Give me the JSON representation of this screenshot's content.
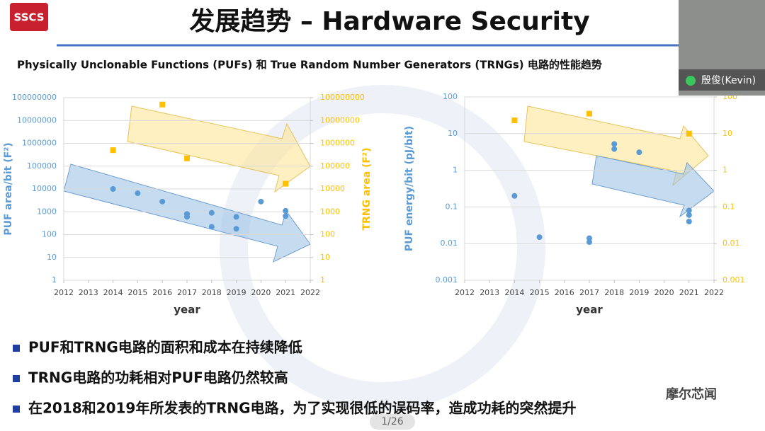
{
  "logo": "SSCS",
  "title": "发展趋势 – Hardware Security",
  "subtitle": "Physically Unclonable Functions (PUFs) 和 True Random Number Generators (TRNGs) 电路的性能趋势",
  "participant": "殷俊(Kevin)",
  "chart_data": [
    {
      "type": "scatter",
      "log_scale": true,
      "grid": true,
      "xlabel": "year",
      "ylabel": "PUF area/bit (F²)",
      "y2label": "TRNG area (F²)",
      "xlim": [
        2012,
        2022
      ],
      "xticks": [
        2012,
        2013,
        2014,
        2015,
        2016,
        2017,
        2018,
        2019,
        2020,
        2021,
        2022
      ],
      "ylim": [
        1,
        100000000
      ],
      "yticks": [
        1,
        10,
        100,
        1000,
        10000,
        100000,
        1000000,
        10000000,
        100000000
      ],
      "y2lim": [
        1,
        100000000
      ],
      "y2ticks": [
        1,
        10,
        100,
        1000,
        10000,
        100000,
        1000000,
        10000000,
        100000000
      ],
      "series": [
        {
          "color": "#5b9bd5",
          "x": [
            2014,
            2015,
            2016,
            2017,
            2017,
            2018,
            2018,
            2019,
            2019,
            2020,
            2021,
            2021
          ],
          "values": [
            10000,
            6500,
            2800,
            800,
            600,
            900,
            220,
            600,
            180,
            2800,
            1100,
            650
          ]
        },
        {
          "color": "#ffc000",
          "axis": "y2",
          "x": [
            2014,
            2016,
            2017,
            2021
          ],
          "values": [
            500000,
            50000000,
            220000,
            17000
          ]
        }
      ]
    },
    {
      "type": "scatter",
      "log_scale": true,
      "grid": true,
      "xlabel": "year",
      "ylabel": "PUF energy/bit (pJ/bit)",
      "xlim": [
        2012,
        2022
      ],
      "xticks": [
        2012,
        2013,
        2014,
        2015,
        2016,
        2017,
        2018,
        2019,
        2020,
        2021,
        2022
      ],
      "ylim": [
        0.001,
        100
      ],
      "yticks": [
        0.001,
        0.01,
        0.1,
        1,
        10,
        100
      ],
      "y2lim": [
        0.001,
        100
      ],
      "y2ticks": [
        0.001,
        0.01,
        0.1,
        1,
        10,
        100
      ],
      "series": [
        {
          "color": "#5b9bd5",
          "x": [
            2014,
            2015,
            2017,
            2017,
            2018,
            2018,
            2019,
            2021,
            2021,
            2021
          ],
          "values": [
            0.2,
            0.015,
            0.014,
            0.011,
            5.2,
            3.8,
            3.1,
            0.08,
            0.06,
            0.04
          ]
        },
        {
          "color": "#ffc000",
          "axis": "y2",
          "x": [
            2014,
            2017,
            2021
          ],
          "values": [
            23,
            35,
            10
          ]
        }
      ]
    }
  ],
  "bullets": [
    "PUF和TRNG电路的面积和成本在持续降低",
    "TRNG电路的功耗相对PUF电路仍然较高",
    "在2018和2019年所发表的TRNG电路，为了实现很低的误码率，造成功耗的突然提升"
  ],
  "watermark": "摩尔芯闻",
  "page_indicator": "1/26"
}
